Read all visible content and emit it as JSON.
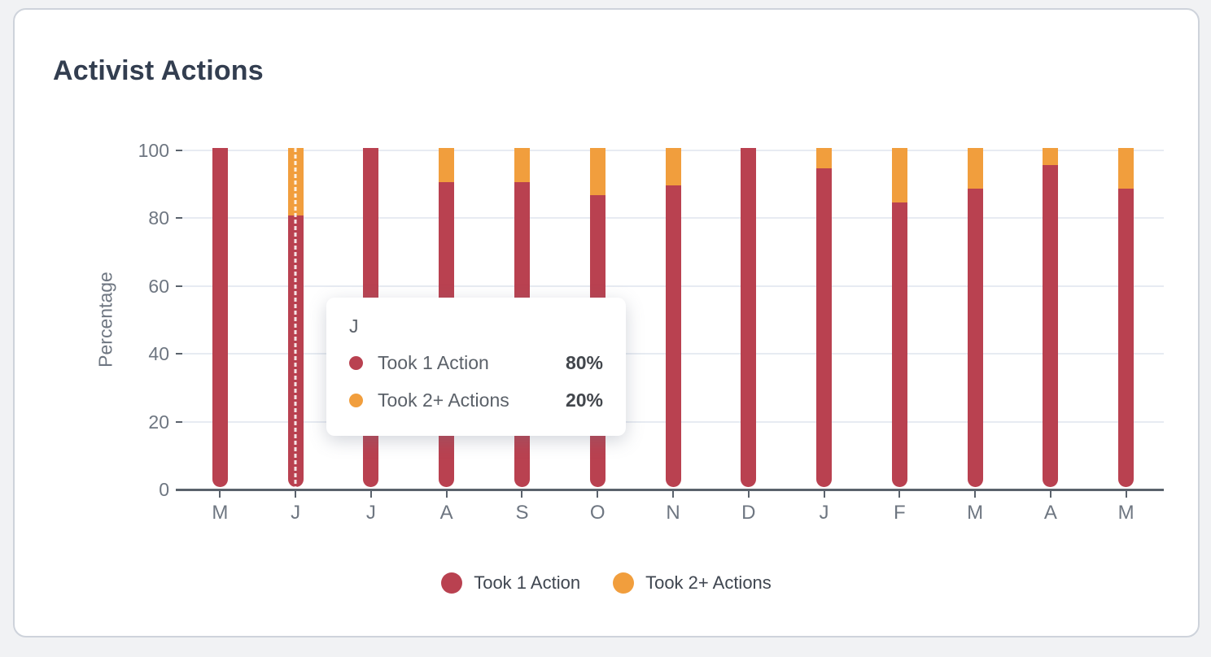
{
  "card": {
    "title": "Activist Actions"
  },
  "colors": {
    "took_1_action": "#b94150",
    "took_2_actions": "#f19e3d",
    "title_text": "#333e50",
    "axis_text": "#6e7681",
    "axis_line": "#5a626c",
    "gridline": "#e7ebf2",
    "card_background": "#ffffff",
    "page_background": "#f1f2f4"
  },
  "chart_data": {
    "type": "bar",
    "subtype": "stacked-percentage-column",
    "categories": [
      "M",
      "J",
      "J",
      "A",
      "S",
      "O",
      "N",
      "D",
      "J",
      "F",
      "M",
      "A",
      "M"
    ],
    "series": [
      {
        "name": "Took 1 Action",
        "color": "#b94150",
        "values": [
          100,
          80,
          100,
          90,
          90,
          86,
          89,
          100,
          94,
          84,
          88,
          95,
          88
        ]
      },
      {
        "name": "Took 2+ Actions",
        "color": "#f19e3d",
        "values": [
          0,
          20,
          0,
          10,
          10,
          14,
          11,
          0,
          6,
          16,
          12,
          5,
          12
        ]
      }
    ],
    "title": "Activist Actions",
    "xlabel": "",
    "ylabel": "Percentage",
    "yticks": [
      0,
      20,
      40,
      60,
      80,
      100
    ],
    "ylim": [
      0,
      100
    ],
    "grid": true,
    "legend_position": "bottom",
    "hovered_index": 1
  },
  "tooltip": {
    "title": "J",
    "rows": [
      {
        "label": "Took 1 Action",
        "value": "80%",
        "color": "#b94150"
      },
      {
        "label": "Took 2+ Actions",
        "value": "20%",
        "color": "#f19e3d"
      }
    ]
  },
  "legend": {
    "items": [
      {
        "label": "Took 1 Action",
        "color": "#b94150"
      },
      {
        "label": "Took 2+ Actions",
        "color": "#f19e3d"
      }
    ]
  }
}
